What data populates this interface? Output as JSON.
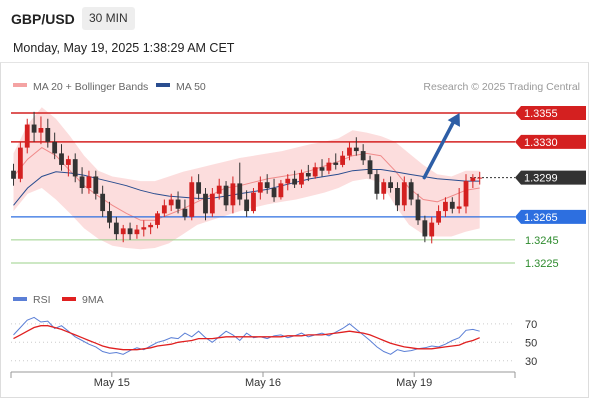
{
  "header": {
    "pair": "GBP/USD",
    "timeframe": "30 MIN",
    "datetime": "Monday, May 19, 2025 1:38:29 AM CET"
  },
  "chart_data": [
    {
      "type": "candlestick",
      "legend": [
        {
          "name": "MA 20 + Bollinger Bands",
          "color": "#f4a3a3"
        },
        {
          "name": "MA 50",
          "color": "#2a4d8f"
        }
      ],
      "credit": "Research © 2025 Trading Central",
      "ylim": [
        1.3212,
        1.3368
      ],
      "xlim": [
        0,
        100
      ],
      "x_ticks": [
        {
          "x": 20,
          "label": "May 15"
        },
        {
          "x": 50,
          "label": "May 16"
        },
        {
          "x": 80,
          "label": "May 19"
        }
      ],
      "levels": [
        {
          "value": 1.3355,
          "label": "1.3355",
          "role": "resistance",
          "color": "#d42020"
        },
        {
          "value": 1.333,
          "label": "1.3330",
          "role": "resistance",
          "color": "#d42020"
        },
        {
          "value": 1.3299,
          "label": "1.3299",
          "role": "last",
          "color": "#333333"
        },
        {
          "value": 1.3265,
          "label": "1.3265",
          "role": "pivot",
          "color": "#2d6fe0"
        },
        {
          "value": 1.3245,
          "label": "1.3245",
          "role": "support",
          "color": "#9bd08a",
          "text_color": "#2e8b2e"
        },
        {
          "value": 1.3225,
          "label": "1.3225",
          "role": "support",
          "color": "#9bd08a",
          "text_color": "#2e8b2e"
        }
      ],
      "projection": {
        "from": [
          82,
          1.3299
        ],
        "to": [
          89,
          1.3355
        ],
        "color": "#2d5ea6"
      },
      "ohlc": [
        [
          1.3305,
          1.3311,
          1.3292,
          1.3298
        ],
        [
          1.3298,
          1.333,
          1.3295,
          1.3325
        ],
        [
          1.3325,
          1.335,
          1.332,
          1.3345
        ],
        [
          1.3345,
          1.3356,
          1.333,
          1.3338
        ],
        [
          1.3338,
          1.3352,
          1.3328,
          1.3342
        ],
        [
          1.3342,
          1.335,
          1.3325,
          1.333
        ],
        [
          1.333,
          1.3338,
          1.3315,
          1.332
        ],
        [
          1.332,
          1.3328,
          1.3305,
          1.331
        ],
        [
          1.331,
          1.3318,
          1.33,
          1.3315
        ],
        [
          1.3315,
          1.332,
          1.3295,
          1.33
        ],
        [
          1.33,
          1.3308,
          1.3285,
          1.329
        ],
        [
          1.329,
          1.3305,
          1.3285,
          1.33
        ],
        [
          1.33,
          1.3305,
          1.328,
          1.3285
        ],
        [
          1.3285,
          1.3292,
          1.3265,
          1.327
        ],
        [
          1.327,
          1.3278,
          1.3255,
          1.326
        ],
        [
          1.326,
          1.3265,
          1.3245,
          1.325
        ],
        [
          1.325,
          1.3258,
          1.3243,
          1.3255
        ],
        [
          1.3255,
          1.326,
          1.3245,
          1.325
        ],
        [
          1.325,
          1.3258,
          1.3246,
          1.3254
        ],
        [
          1.3254,
          1.3262,
          1.3248,
          1.3256
        ],
        [
          1.3256,
          1.326,
          1.325,
          1.3258
        ],
        [
          1.3258,
          1.327,
          1.3255,
          1.3268
        ],
        [
          1.3268,
          1.328,
          1.3265,
          1.3275
        ],
        [
          1.3275,
          1.3285,
          1.327,
          1.328
        ],
        [
          1.328,
          1.3287,
          1.3268,
          1.3272
        ],
        [
          1.3272,
          1.328,
          1.3262,
          1.3265
        ],
        [
          1.3265,
          1.33,
          1.3262,
          1.3295
        ],
        [
          1.3295,
          1.3302,
          1.328,
          1.3285
        ],
        [
          1.3285,
          1.329,
          1.3262,
          1.3268
        ],
        [
          1.3268,
          1.329,
          1.3265,
          1.3285
        ],
        [
          1.3285,
          1.3298,
          1.328,
          1.3292
        ],
        [
          1.3292,
          1.3296,
          1.327,
          1.3275
        ],
        [
          1.3275,
          1.33,
          1.3268,
          1.3294
        ],
        [
          1.3294,
          1.3312,
          1.3275,
          1.328
        ],
        [
          1.328,
          1.3288,
          1.3265,
          1.327
        ],
        [
          1.327,
          1.329,
          1.3268,
          1.3286
        ],
        [
          1.3286,
          1.33,
          1.328,
          1.3295
        ],
        [
          1.3295,
          1.3302,
          1.3285,
          1.329
        ],
        [
          1.329,
          1.3298,
          1.3278,
          1.3282
        ],
        [
          1.3282,
          1.3297,
          1.328,
          1.3294
        ],
        [
          1.3294,
          1.3302,
          1.3288,
          1.3298
        ],
        [
          1.3298,
          1.3305,
          1.329,
          1.3293
        ],
        [
          1.3293,
          1.3306,
          1.329,
          1.3303
        ],
        [
          1.3303,
          1.331,
          1.3296,
          1.33
        ],
        [
          1.33,
          1.3312,
          1.3298,
          1.3308
        ],
        [
          1.3308,
          1.3315,
          1.33,
          1.3305
        ],
        [
          1.3305,
          1.3316,
          1.3302,
          1.3312
        ],
        [
          1.3312,
          1.332,
          1.3306,
          1.331
        ],
        [
          1.331,
          1.3322,
          1.3308,
          1.3318
        ],
        [
          1.3318,
          1.333,
          1.3314,
          1.3325
        ],
        [
          1.3325,
          1.3334,
          1.3318,
          1.3322
        ],
        [
          1.3322,
          1.3328,
          1.331,
          1.3314
        ],
        [
          1.3314,
          1.3318,
          1.3298,
          1.3302
        ],
        [
          1.3302,
          1.3306,
          1.328,
          1.3285
        ],
        [
          1.3285,
          1.3298,
          1.328,
          1.3295
        ],
        [
          1.3295,
          1.33,
          1.3286,
          1.329
        ],
        [
          1.329,
          1.3295,
          1.327,
          1.3275
        ],
        [
          1.3275,
          1.33,
          1.327,
          1.3295
        ],
        [
          1.3295,
          1.3298,
          1.3275,
          1.328
        ],
        [
          1.328,
          1.3285,
          1.3258,
          1.3262
        ],
        [
          1.3262,
          1.3266,
          1.3243,
          1.3248
        ],
        [
          1.3248,
          1.3265,
          1.3242,
          1.326
        ],
        [
          1.326,
          1.3275,
          1.3258,
          1.327
        ],
        [
          1.327,
          1.3282,
          1.3265,
          1.3278
        ],
        [
          1.3278,
          1.3282,
          1.3268,
          1.3272
        ],
        [
          1.3272,
          1.329,
          1.3268,
          1.3274
        ],
        [
          1.3274,
          1.3302,
          1.3268,
          1.3296
        ],
        [
          1.3296,
          1.3302,
          1.329,
          1.3299
        ],
        [
          1.3299,
          1.3304,
          1.3293,
          1.3299
        ]
      ],
      "ma20": [
        1.33,
        1.3315,
        1.3325,
        1.3318,
        1.3305,
        1.3292,
        1.3283,
        1.3275,
        1.3268,
        1.3262,
        1.3262,
        1.3267,
        1.3272,
        1.3278,
        1.3284,
        1.329,
        1.3292,
        1.3295,
        1.3298,
        1.33,
        1.3302,
        1.3305,
        1.3309,
        1.3313,
        1.3318,
        1.332,
        1.3318,
        1.3305,
        1.329,
        1.328,
        1.3278,
        1.3283,
        1.3288,
        1.329
      ],
      "bb_upper": [
        1.332,
        1.3345,
        1.336,
        1.335,
        1.3335,
        1.3318,
        1.3305,
        1.33,
        1.3298,
        1.3296,
        1.3296,
        1.33,
        1.3304,
        1.3307,
        1.331,
        1.3313,
        1.3316,
        1.3318,
        1.332,
        1.3322,
        1.3325,
        1.3328,
        1.333,
        1.3333,
        1.334,
        1.3338,
        1.3335,
        1.333,
        1.332,
        1.331,
        1.3302,
        1.33,
        1.3305,
        1.3305
      ],
      "bb_lower": [
        1.327,
        1.3285,
        1.329,
        1.328,
        1.3268,
        1.3255,
        1.3246,
        1.324,
        1.3238,
        1.3237,
        1.3238,
        1.3242,
        1.325,
        1.3258,
        1.3262,
        1.3266,
        1.327,
        1.3273,
        1.3276,
        1.3278,
        1.328,
        1.3283,
        1.3286,
        1.329,
        1.3296,
        1.3298,
        1.3295,
        1.3275,
        1.3258,
        1.325,
        1.3248,
        1.3248,
        1.3252,
        1.3255
      ],
      "ma50": [
        1.3275,
        1.329,
        1.33,
        1.3304,
        1.3303,
        1.3301,
        1.3298,
        1.3295,
        1.3292,
        1.3288,
        1.3285,
        1.3283,
        1.3282,
        1.3281,
        1.3281,
        1.3283,
        1.3285,
        1.3287,
        1.3289,
        1.3292,
        1.3295,
        1.3298,
        1.33,
        1.3302,
        1.3305,
        1.3306,
        1.3306,
        1.3304,
        1.3302,
        1.33,
        1.3298,
        1.3297,
        1.3296,
        1.3296
      ]
    },
    {
      "type": "line",
      "legend": [
        {
          "name": "RSI",
          "color": "#5b7fd6"
        },
        {
          "name": "9MA",
          "color": "#e02020"
        }
      ],
      "ylim": [
        20,
        85
      ],
      "y_ticks": [
        {
          "value": 70,
          "label": "70"
        },
        {
          "value": 50,
          "label": "50"
        },
        {
          "value": 30,
          "label": "30"
        }
      ],
      "series": [
        {
          "name": "RSI",
          "values": [
            58,
            66,
            74,
            77,
            72,
            73,
            65,
            68,
            62,
            56,
            52,
            48,
            45,
            40,
            38,
            39,
            37,
            41,
            44,
            42,
            46,
            50,
            52,
            55,
            54,
            60,
            56,
            62,
            55,
            50,
            56,
            62,
            58,
            52,
            60,
            55,
            56,
            54,
            57,
            58,
            55,
            57,
            60,
            56,
            58,
            60,
            57,
            61,
            65,
            70,
            64,
            58,
            52,
            45,
            40,
            37,
            42,
            40,
            41,
            43,
            44,
            46,
            45,
            48,
            52,
            55,
            63,
            64,
            62
          ]
        },
        {
          "name": "9MA",
          "values": [
            54,
            58,
            62,
            66,
            68,
            68,
            66,
            64,
            61,
            58,
            55,
            52,
            49,
            46,
            44,
            43,
            42,
            42,
            42,
            43,
            44,
            46,
            47,
            48,
            50,
            51,
            52,
            54,
            54,
            54,
            55,
            56,
            56,
            56,
            56,
            56,
            56,
            56,
            56,
            56,
            57,
            57,
            57,
            58,
            58,
            58,
            59,
            60,
            61,
            62,
            61,
            60,
            58,
            55,
            52,
            49,
            47,
            45,
            44,
            43,
            43,
            43,
            44,
            45,
            46,
            47,
            50,
            52,
            55
          ]
        }
      ],
      "x_ticks": [
        {
          "x": 20,
          "label": "May 15"
        },
        {
          "x": 50,
          "label": "May 16"
        },
        {
          "x": 80,
          "label": "May 19"
        }
      ]
    }
  ],
  "colors": {
    "bull": "#d42020",
    "bear": "#333333",
    "band_fill": "#fbd7d7",
    "grid_dotted": "#cccccc"
  }
}
